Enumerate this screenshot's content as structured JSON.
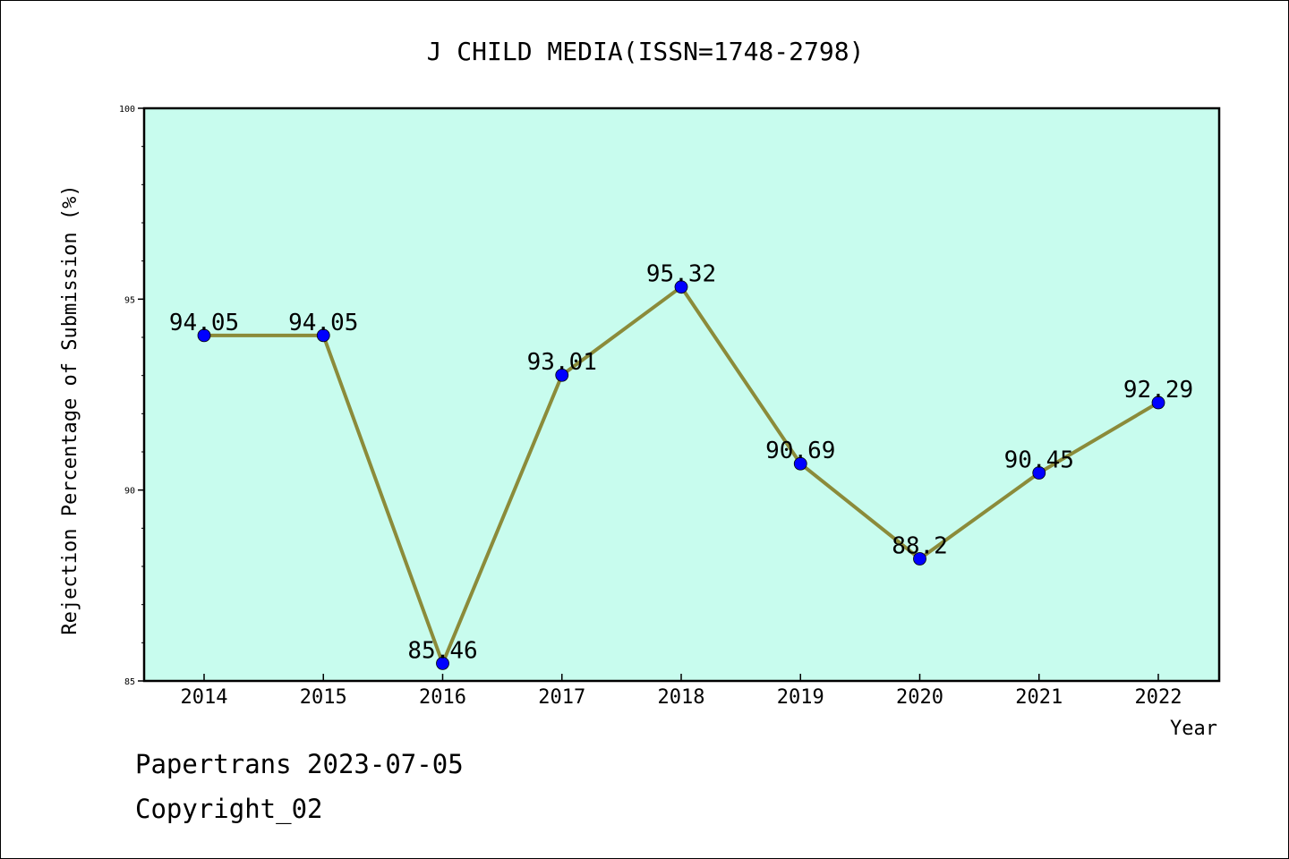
{
  "chart_data": {
    "type": "line",
    "title": "J CHILD MEDIA(ISSN=1748-2798)",
    "xlabel": "Year",
    "ylabel": "Rejection Percentage of Submission (%)",
    "categories": [
      "2014",
      "2015",
      "2016",
      "2017",
      "2018",
      "2019",
      "2020",
      "2021",
      "2022"
    ],
    "series": [
      {
        "values": [
          94.05,
          94.05,
          85.46,
          93.01,
          95.32,
          90.69,
          88.2,
          90.45,
          92.29
        ],
        "data_labels": [
          "94.05",
          "94.05",
          "85.46",
          "93.01",
          "95.32",
          "90.69",
          "88.2",
          "90.45",
          "92.29"
        ],
        "line_color": "#8b8b3a",
        "marker_color": "#0000ff"
      }
    ],
    "ylim": [
      85,
      100
    ],
    "yticks": [
      "85",
      "90",
      "95",
      "100"
    ],
    "plot_background": "#c8fcee",
    "grid": false,
    "legend": "none"
  },
  "footer": {
    "date_line": "Papertrans 2023-07-05",
    "copyright_line": "Copyright_02"
  }
}
